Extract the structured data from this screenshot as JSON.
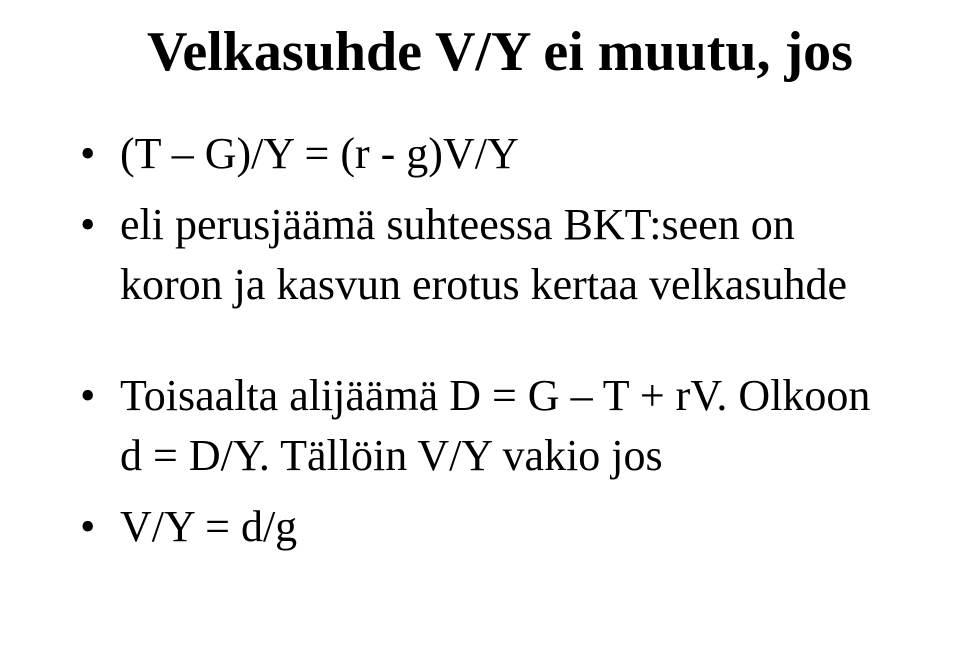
{
  "title": "Velkasuhde V/Y ei muutu, jos",
  "bullets": {
    "b1": "(T – G)/Y = (r - g)V/Y",
    "b2": "eli perusjäämä suhteessa BKT:seen on koron ja kasvun erotus kertaa velkasuhde",
    "b3": "Toisaalta alijäämä D = G – T + rV. Olkoon d = D/Y. Tällöin V/Y vakio jos",
    "b4": "V/Y = d/g"
  }
}
